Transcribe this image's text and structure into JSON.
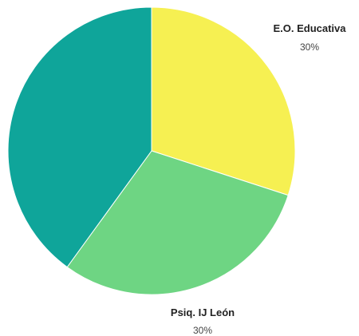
{
  "chart_data": {
    "type": "pie",
    "title": "",
    "slices": [
      {
        "label": "E.O. Educativa",
        "value": 30,
        "display": "30%",
        "color": "#F6F052"
      },
      {
        "label": "Psiq. IJ León",
        "value": 30,
        "display": "30%",
        "color": "#6ED583"
      },
      {
        "label": "",
        "value": 40,
        "display": "",
        "color": "#0FA59A"
      }
    ],
    "start_position": "top",
    "direction": "clockwise",
    "legend": "none"
  }
}
